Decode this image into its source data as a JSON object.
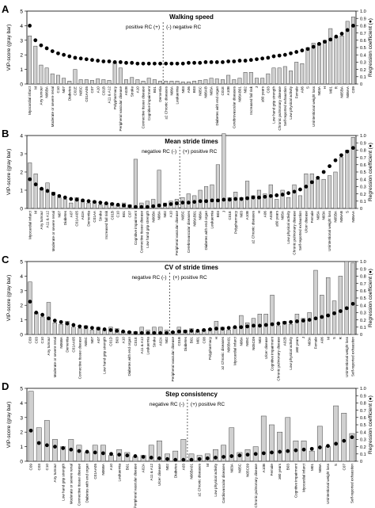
{
  "chart_data": [
    {
      "type": "bar",
      "panel_letter": "A",
      "title": "Walking speed",
      "ylabel": "VIP-score (gray bar)",
      "y2label": "Regression coefficient (●)",
      "ylim": [
        0,
        5
      ],
      "y2lim": [
        0,
        1.0
      ],
      "yticks": [
        0,
        1,
        2,
        3,
        4,
        5
      ],
      "y2ticks": [
        "0",
        "0.1",
        "0.2",
        "0.3",
        "0.4",
        "0.5",
        "0.6",
        "0.7",
        "0.8",
        "0.9",
        "1.0"
      ],
      "divider_index": 24,
      "left_annotation": "positive RC (+)",
      "right_annotation": "(-) negative RC",
      "categories": [
        "Myocardial infarct",
        "M",
        "Any tumour",
        "N06BA",
        "Moderate or severe renal",
        "C10",
        "N07",
        "Diabetes",
        "C01E",
        "N05C",
        "C01AA05",
        "C07",
        "A10",
        "C01B",
        "A11 & A12",
        "Polypharmacy",
        "Peripheral vascular disease",
        "A02B",
        "Stroke",
        "A10",
        "Connective tissue disease",
        "Cognitive impairment",
        "B01",
        "Dementia",
        "≥2 Chronic diseases",
        "N06A",
        "Leukaemia",
        "N03",
        "A06",
        "B03",
        "N05C",
        "N06AB",
        "N05A",
        "Diabetes with end organ",
        "C01E",
        "A10B",
        "Cerebrovascular diseases",
        "N06AB01",
        "N02",
        "Increased fall risk",
        "J",
        "≥80 years",
        "C03",
        "Low hand grip strength",
        "Chronic pulmonary disease",
        "Self-reported exhaustion",
        "Low physical activity",
        "Female",
        "A06",
        "S",
        "Unintentional weight loss",
        "N03A",
        "H",
        "M01",
        "R",
        "N05BA",
        "N06AA",
        "C09"
      ],
      "vip": [
        3.3,
        2.6,
        1.3,
        1.1,
        0.7,
        0.6,
        0.4,
        0.2,
        1.0,
        0.3,
        0.3,
        0.25,
        0.35,
        0.3,
        0.25,
        1.5,
        1.1,
        0.3,
        0.45,
        0.3,
        0.2,
        0.4,
        0.3,
        0.2,
        0.2,
        0.2,
        0.2,
        0.15,
        0.15,
        0.2,
        0.25,
        0.3,
        0.4,
        0.35,
        0.3,
        0.6,
        0.3,
        0.4,
        0.8,
        0.8,
        0.4,
        0.4,
        0.7,
        1.1,
        1.1,
        1.2,
        0.9,
        1.5,
        1.4,
        2.5,
        2.8,
        2.8,
        3.0,
        3.8,
        3.2,
        3.3,
        4.3,
        4.6
      ],
      "rc": [
        0.8,
        0.6,
        0.53,
        0.49,
        0.45,
        0.42,
        0.4,
        0.38,
        0.36,
        0.35,
        0.34,
        0.33,
        0.32,
        0.31,
        0.31,
        0.3,
        0.3,
        0.29,
        0.29,
        0.28,
        0.28,
        0.28,
        0.28,
        0.28,
        0.28,
        0.28,
        0.28,
        0.28,
        0.29,
        0.29,
        0.29,
        0.3,
        0.3,
        0.3,
        0.3,
        0.31,
        0.31,
        0.32,
        0.32,
        0.33,
        0.34,
        0.35,
        0.36,
        0.38,
        0.39,
        0.4,
        0.42,
        0.44,
        0.46,
        0.48,
        0.51,
        0.55,
        0.58,
        0.61,
        0.65,
        0.69,
        0.74,
        0.8
      ]
    },
    {
      "type": "bar",
      "panel_letter": "B",
      "title": "Mean stride times",
      "ylabel": "VIP-score (gray bar)",
      "y2label": "Regression coefficient (●)",
      "ylim": [
        0,
        4
      ],
      "y2lim": [
        0,
        1.0
      ],
      "yticks": [
        0,
        1,
        2,
        3,
        4
      ],
      "y2ticks": [
        "0",
        "0.1",
        "0.2",
        "0.3",
        "0.4",
        "0.5",
        "0.6",
        "0.7",
        "0.8",
        "0.9",
        "1.0"
      ],
      "divider_index": 26,
      "left_annotation": "negative RC (-)",
      "right_annotation": "(+) positive RC",
      "categories": [
        "Myocardial infarct",
        "M",
        "Any tumour",
        "A11 & A12",
        "Moderate or severe renal",
        "N07",
        "Diabetes",
        "A07",
        "C01AA05",
        "A02A",
        "Dementia",
        "C01AA",
        "Stroke",
        "Increased fall risk",
        "C01B",
        "C10",
        "B01",
        "C07",
        "Cognitive impairment",
        "Connective tissue disease",
        "Low hand grip strength",
        "N06BA",
        "N06A",
        "N02",
        "A10",
        "Peripheral vascular disease",
        "N05C",
        "Cerebrovascular diseases",
        "N06AB01",
        "N06A",
        "Diabetes with end organ",
        "Leukaemia",
        "B03",
        "J",
        "C01E",
        "Polypharmacy",
        "N03",
        "A10B",
        "≥2 Chronic diseases",
        "H",
        "A06",
        "A02B",
        "≥80 years",
        "N05A",
        "Low physical activity",
        "Chronic pulmonary disease",
        "Self-reported exhaustion",
        "Ulcer disease",
        "Female",
        "N05A",
        "N03A",
        "Unintentional weight loss",
        "N05BA",
        "N06AB",
        "S",
        "N06AA"
      ],
      "vip": [
        2.5,
        1.9,
        1.1,
        1.4,
        0.9,
        0.6,
        0.5,
        0.3,
        0.6,
        0.4,
        0.3,
        0.4,
        0.2,
        0.3,
        0.3,
        0.2,
        0.3,
        0.2,
        2.7,
        0.3,
        0.4,
        0.5,
        2.1,
        0.3,
        0.4,
        0.5,
        0.6,
        0.8,
        0.7,
        1.0,
        1.2,
        1.3,
        2.4,
        4.1,
        0.6,
        0.9,
        0.6,
        1.5,
        0.7,
        1.0,
        0.8,
        1.3,
        0.5,
        1.0,
        0.6,
        1.3,
        0.7,
        1.9,
        1.9,
        1.6,
        1.6,
        1.8,
        2.0,
        2.8,
        3.2,
        3.9
      ],
      "rc": [
        0.4,
        0.33,
        0.27,
        0.24,
        0.2,
        0.17,
        0.15,
        0.13,
        0.12,
        0.11,
        0.1,
        0.09,
        0.08,
        0.07,
        0.06,
        0.05,
        0.04,
        0.03,
        0.02,
        0.02,
        0.02,
        0.03,
        0.04,
        0.05,
        0.06,
        0.07,
        0.08,
        0.08,
        0.09,
        0.1,
        0.1,
        0.11,
        0.11,
        0.12,
        0.12,
        0.13,
        0.13,
        0.14,
        0.15,
        0.15,
        0.16,
        0.17,
        0.18,
        0.19,
        0.21,
        0.23,
        0.26,
        0.3,
        0.36,
        0.42,
        0.5,
        0.58,
        0.66,
        0.73,
        0.78,
        0.83
      ]
    },
    {
      "type": "bar",
      "panel_letter": "C",
      "title": "CV of stride times",
      "ylabel": "VIP-score (gray bar)",
      "y2label": "Regression coefficient (●)",
      "ylim": [
        0,
        5
      ],
      "y2lim": [
        0,
        1.0
      ],
      "yticks": [
        0,
        1,
        2,
        3,
        4,
        5
      ],
      "y2ticks": [
        "0",
        "0.1",
        "0.2",
        "0.3",
        "0.4",
        "0.5",
        "0.6",
        "0.7",
        "0.8",
        "0.9",
        "1.0"
      ],
      "divider_index": 23,
      "left_annotation": "negative RC (-)",
      "right_annotation": "(+) positive RC",
      "categories": [
        "C09",
        "C03",
        "C10",
        "Any tumour",
        "Moderate or severe renal",
        "N06BA",
        "Dementia",
        "C01AA05",
        "Connective tissue disease",
        "N05C",
        "N07",
        "A07",
        "Low hand grip strength",
        "C01D",
        "B03",
        "A10",
        "Diabetes with end organ",
        "C01E",
        "A11 & A12",
        "Leukaemia",
        "Stroke",
        "A02A",
        "N02",
        "Peripheral vascular disease",
        "C01B",
        "Diabetes",
        "B01",
        "M01",
        "C08",
        "Polypharmacy",
        "H",
        "≥2 Chronic diseases",
        "N06BA01",
        "Myocardial infarct",
        "N06A",
        "N05C",
        "N05C09",
        "N03",
        "Ulcer disease",
        "Cognitive impairment",
        "Chronic pulmonary disease",
        "A02B",
        "Low physical activity",
        "≥80 years",
        "J",
        "N03A",
        "Female",
        "A06",
        "M",
        "S",
        "R",
        "Unintentional weight loss",
        "Self-reported exhaustion"
      ],
      "vip": [
        3.6,
        1.5,
        1.2,
        2.2,
        0.8,
        0.7,
        0.9,
        0.5,
        0.4,
        0.6,
        0.3,
        0.5,
        0.3,
        0.5,
        0.4,
        0.2,
        0.2,
        0.2,
        0.5,
        0.3,
        0.5,
        0.5,
        0.3,
        0.2,
        0.5,
        0.3,
        0.4,
        0.2,
        0.3,
        0.4,
        0.9,
        0.5,
        0.3,
        0.5,
        1.3,
        0.8,
        1.1,
        1.4,
        1.4,
        2.7,
        0.6,
        0.9,
        0.7,
        1.4,
        1.1,
        1.5,
        4.4,
        2.7,
        3.9,
        2.3,
        4.0,
        5.0,
        4.9
      ],
      "rc": [
        0.45,
        0.3,
        0.27,
        0.22,
        0.19,
        0.17,
        0.15,
        0.13,
        0.11,
        0.1,
        0.09,
        0.08,
        0.07,
        0.06,
        0.05,
        0.04,
        0.03,
        0.02,
        0.02,
        0.02,
        0.02,
        0.02,
        0.02,
        0.03,
        0.04,
        0.04,
        0.05,
        0.05,
        0.06,
        0.07,
        0.08,
        0.08,
        0.09,
        0.1,
        0.1,
        0.11,
        0.12,
        0.12,
        0.13,
        0.14,
        0.15,
        0.16,
        0.17,
        0.18,
        0.19,
        0.2,
        0.22,
        0.24,
        0.26,
        0.29,
        0.32,
        0.36,
        0.42
      ]
    },
    {
      "type": "bar",
      "panel_letter": "D",
      "title": "Step consistency",
      "ylabel": "VIP-score (gray bar)",
      "y2label": "Regression coefficient (●)",
      "ylim": [
        0,
        5
      ],
      "y2lim": [
        0,
        1.0
      ],
      "yticks": [
        0,
        1,
        2,
        3,
        4,
        5
      ],
      "y2ticks": [
        "0",
        "0.1",
        "0.2",
        "0.3",
        "0.4",
        "0.5",
        "0.6",
        "0.7",
        "0.8",
        "0.9",
        "1.0"
      ],
      "divider_index": 20,
      "left_annotation": "negative RC (-)",
      "right_annotation": "(+) positive RC",
      "categories": [
        "C09",
        "C03",
        "C10",
        "Any tumour",
        "Low hand grip strength",
        "Moderate or severe renal",
        "Connective tissue disease",
        "Diabetes with end organ",
        "C01AA05",
        "N06BA",
        "A10",
        "Leukaemia",
        "B01",
        "Peripheral vascular disease",
        "A02A",
        "A11 & A12",
        "Ulcer disease",
        "N02",
        "Diabetes",
        "A03",
        "N06BA01",
        "≥2 Chronic diseases",
        "M",
        "Low physical activity",
        "Cardiovascular diseases",
        "N03A",
        "N05C",
        "N05C09",
        "Chronic pulmonary disease",
        "A10B",
        "Female",
        "≥80 years",
        "B03",
        "Cognitive impairment",
        "Myocardial infarct",
        "M01",
        "N06A",
        "Unintentional weight loss",
        "S",
        "C07",
        "Self-reported exhaustion"
      ],
      "vip": [
        4.8,
        2.3,
        2.8,
        1.5,
        1.0,
        1.5,
        1.1,
        0.6,
        1.1,
        1.1,
        0.4,
        0.8,
        0.6,
        0.3,
        0.4,
        1.1,
        1.4,
        0.5,
        0.7,
        1.5,
        0.5,
        0.4,
        0.5,
        0.8,
        1.1,
        2.3,
        0.6,
        0.8,
        1.0,
        3.1,
        2.5,
        2.0,
        3.0,
        1.4,
        1.4,
        0.7,
        2.4,
        1.0,
        3.8,
        3.3,
        1.9
      ],
      "rc": [
        0.42,
        0.25,
        0.22,
        0.2,
        0.18,
        0.16,
        0.14,
        0.13,
        0.12,
        0.11,
        0.1,
        0.09,
        0.08,
        0.07,
        0.06,
        0.05,
        0.04,
        0.03,
        0.02,
        0.02,
        0.02,
        0.03,
        0.04,
        0.05,
        0.06,
        0.07,
        0.08,
        0.09,
        0.1,
        0.11,
        0.12,
        0.13,
        0.14,
        0.15,
        0.16,
        0.17,
        0.19,
        0.21,
        0.24,
        0.28,
        0.33
      ]
    }
  ]
}
